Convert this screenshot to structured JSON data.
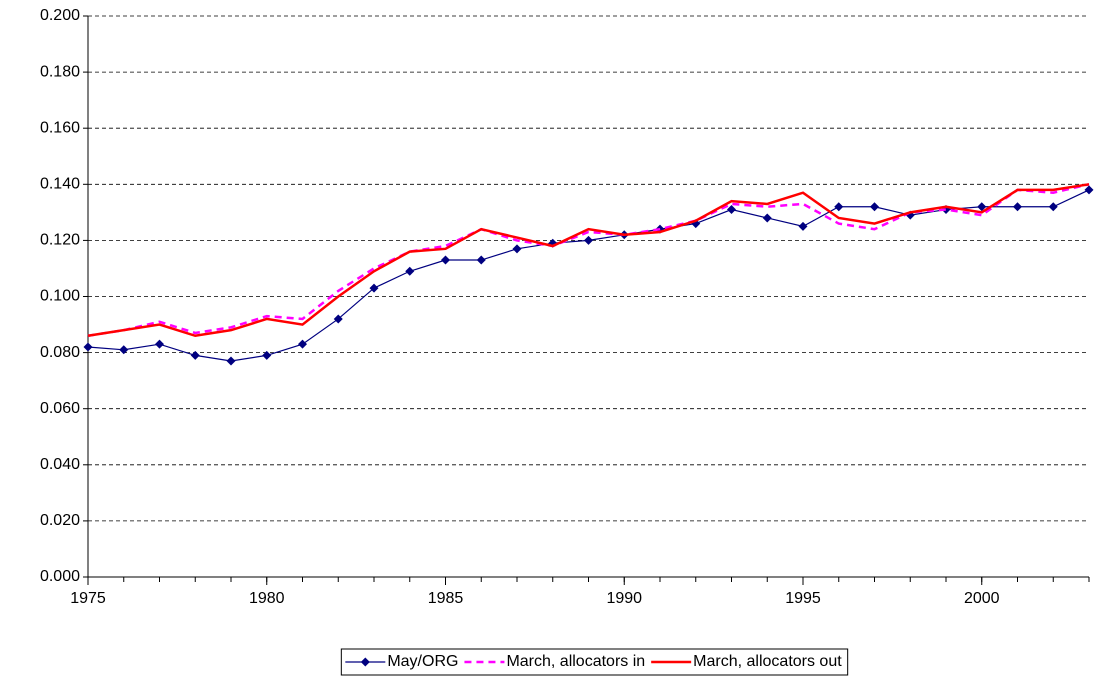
{
  "chart_data": {
    "type": "line",
    "x": [
      1975,
      1976,
      1977,
      1978,
      1979,
      1980,
      1981,
      1982,
      1983,
      1984,
      1985,
      1986,
      1987,
      1988,
      1989,
      1990,
      1991,
      1992,
      1993,
      1994,
      1995,
      1996,
      1997,
      1998,
      1999,
      2000,
      2001,
      2002,
      2003
    ],
    "series": [
      {
        "name": "May/ORG",
        "color": "#000080",
        "line_style": "solid",
        "line_width": 1.2,
        "marker": "diamond",
        "values": [
          0.082,
          0.081,
          0.083,
          0.079,
          0.077,
          0.079,
          0.083,
          0.092,
          0.103,
          0.109,
          0.113,
          0.113,
          0.117,
          0.119,
          0.12,
          0.122,
          0.124,
          0.126,
          0.131,
          0.128,
          0.125,
          0.132,
          0.132,
          0.129,
          0.131,
          0.132,
          0.132,
          0.132,
          0.138
        ]
      },
      {
        "name": "March, allocators in",
        "color": "#ff00ff",
        "line_style": "dashed",
        "line_width": 2.5,
        "marker": "none",
        "values": [
          0.086,
          0.088,
          0.091,
          0.087,
          0.089,
          0.093,
          0.092,
          0.102,
          0.11,
          0.116,
          0.118,
          0.124,
          0.12,
          0.118,
          0.123,
          0.122,
          0.124,
          0.127,
          0.133,
          0.132,
          0.133,
          0.126,
          0.124,
          0.13,
          0.131,
          0.129,
          0.138,
          0.137,
          0.14
        ]
      },
      {
        "name": "March, allocators out",
        "color": "#ff0000",
        "line_style": "solid",
        "line_width": 2.5,
        "marker": "none",
        "values": [
          0.086,
          0.088,
          0.09,
          0.086,
          0.088,
          0.092,
          0.09,
          0.1,
          0.109,
          0.116,
          0.117,
          0.124,
          0.121,
          0.118,
          0.124,
          0.122,
          0.123,
          0.127,
          0.134,
          0.133,
          0.137,
          0.128,
          0.126,
          0.13,
          0.132,
          0.13,
          0.138,
          0.138,
          0.14
        ]
      }
    ],
    "xlim": [
      1975,
      2003
    ],
    "xticks": [
      1975,
      1980,
      1985,
      1990,
      1995,
      2000
    ],
    "ylim": [
      0,
      0.2
    ],
    "yticks": [
      {
        "value": 0,
        "label": "0.000"
      },
      {
        "value": 0.02,
        "label": "0.020"
      },
      {
        "value": 0.04,
        "label": "0.040"
      },
      {
        "value": 0.06,
        "label": "0.060"
      },
      {
        "value": 0.08,
        "label": "0.080"
      },
      {
        "value": 0.1,
        "label": "0.100"
      },
      {
        "value": 0.12,
        "label": "0.120"
      },
      {
        "value": 0.14,
        "label": "0.140"
      },
      {
        "value": 0.16,
        "label": "0.160"
      },
      {
        "value": 0.18,
        "label": "0.180"
      },
      {
        "value": 0.2,
        "label": "0.200"
      }
    ],
    "grid": true,
    "legend": "bottom"
  }
}
